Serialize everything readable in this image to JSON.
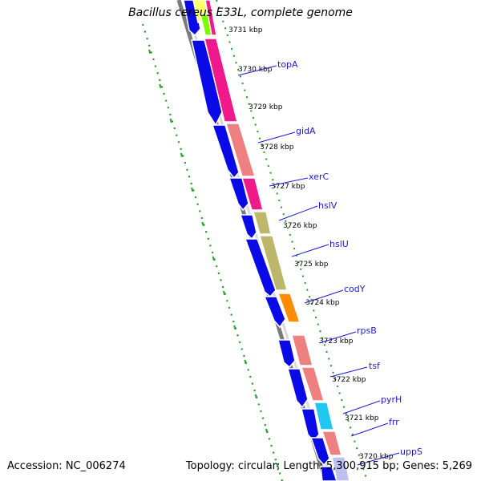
{
  "title": "Bacillus cereus E33L, complete genome",
  "footer": {
    "accession": "Accession: NC_006274",
    "summary": "Topology: circular; Length: 5,300,915 bp; Genes: 5,269"
  },
  "colors": {
    "strand_blue": "#0a0ae6",
    "backbone": "#7a7a7a",
    "dotted_track": "#1f9a1f",
    "label_blue": "#1a1ad8"
  },
  "ticks": [
    "3731 kbp",
    "3730 kbp",
    "3729 kbp",
    "3728 kbp",
    "3727 kbp",
    "3726 kbp",
    "3725 kbp",
    "3724 kbp",
    "3723 kbp",
    "3722 kbp",
    "3721 kbp",
    "3720 kbp"
  ],
  "genes": [
    {
      "name": "topA",
      "color": "#f0198c"
    },
    {
      "name": "gidA",
      "color": "#ee8080"
    },
    {
      "name": "xerC",
      "color": "#f0198c"
    },
    {
      "name": "hslV",
      "color": "#bdb76b"
    },
    {
      "name": "hslU",
      "color": "#bdb76b"
    },
    {
      "name": "codY",
      "color": "#ff8c00"
    },
    {
      "name": "rpsB",
      "color": "#ee8080"
    },
    {
      "name": "tsf",
      "color": "#ee8080"
    },
    {
      "name": "pyrH",
      "color": "#1ec8f0"
    },
    {
      "name": "frr",
      "color": "#ee8080"
    },
    {
      "name": "uppS",
      "color": "#c0c0f0"
    }
  ]
}
